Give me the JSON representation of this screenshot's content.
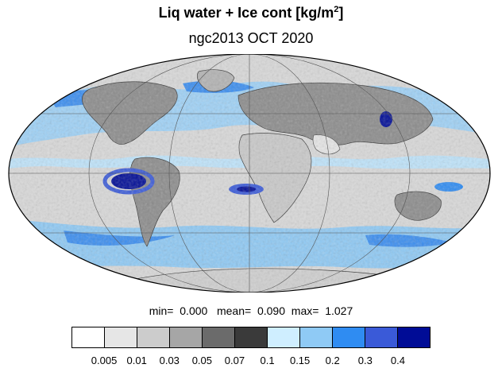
{
  "title": {
    "main": "Liq water + Ice cont [kg/m",
    "superscript": "2",
    "close": "]"
  },
  "subtitle": "ngc2013 OCT 2020",
  "stats": {
    "min_label": "min=",
    "min_value": "0.000",
    "mean_label": "mean=",
    "mean_value": "0.090",
    "max_label": "max=",
    "max_value": "1.027"
  },
  "map": {
    "projection": "mollweide",
    "ocean_base_color": "#d9d9d9",
    "land_base_color": "#8c8c8c"
  },
  "colorbar": {
    "colors": [
      "#ffffff",
      "#e6e6e6",
      "#cccccc",
      "#a6a6a6",
      "#6b6b6b",
      "#3a3a3a",
      "#cfeeff",
      "#8fcaf5",
      "#2f8cf2",
      "#3a5ad8",
      "#000c96"
    ],
    "labels": [
      "0.005",
      "0.01",
      "0.03",
      "0.05",
      "0.07",
      "0.1",
      "0.15",
      "0.2",
      "0.3",
      "0.4"
    ]
  }
}
